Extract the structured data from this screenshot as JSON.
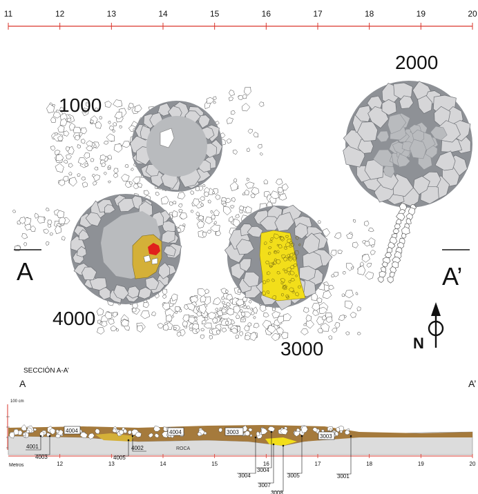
{
  "scale": {
    "ticks": [
      "11",
      "12",
      "13",
      "14",
      "15",
      "16",
      "17",
      "18",
      "19",
      "20"
    ],
    "color": "#d9342b"
  },
  "structures": {
    "s1000": "1000",
    "s2000": "2000",
    "s3000": "3000",
    "s4000": "4000"
  },
  "section_markers": {
    "left": "A",
    "right": "A’"
  },
  "north": "N",
  "profile": {
    "title": "SECCIÓN A-A’",
    "left": "A",
    "right": "A’",
    "scale_label": "100 cm",
    "units_label": "Metros",
    "bedrock": "ROCA",
    "ticks": [
      "12",
      "13",
      "14",
      "15",
      "16",
      "17",
      "18",
      "19",
      "20"
    ],
    "boxed_labels": [
      "4004",
      "4004",
      "3003",
      "3003"
    ],
    "leader_labels": [
      "4001",
      "4003",
      "4005",
      "4002",
      "3004",
      "3004",
      "3007",
      "3005",
      "3001",
      "3008"
    ]
  },
  "colors": {
    "stone_light": "#d6d6d8",
    "stone_dark": "#8e9196",
    "fill_mid": "#b9bbbe",
    "ochre": "#d4b038",
    "yellow": "#f2de1a",
    "red": "#e0201c",
    "brown": "#a57a3c",
    "rock": "#dcdcdc"
  }
}
